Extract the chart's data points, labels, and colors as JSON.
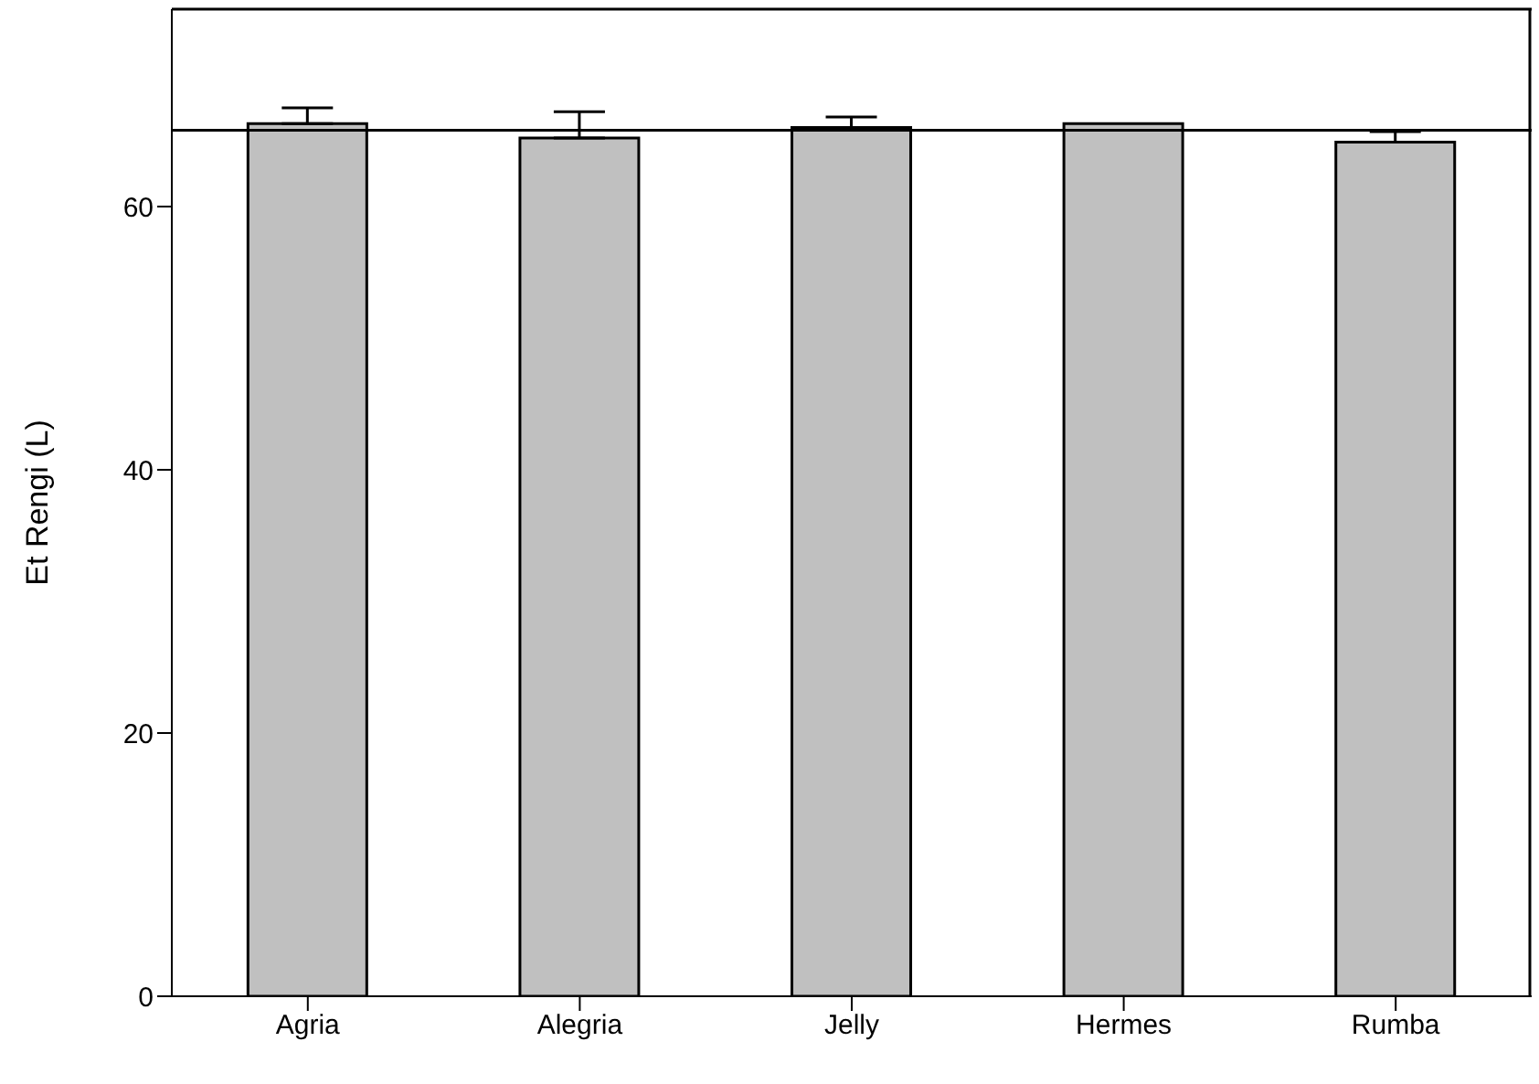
{
  "chart_data": {
    "type": "bar",
    "ylabel": "Et Rengi (L)",
    "categories": [
      "Agria",
      "Alegria",
      "Jelly",
      "Hermes",
      "Rumba"
    ],
    "values": [
      66.3,
      65.2,
      66.0,
      66.3,
      64.9
    ],
    "errors": [
      [
        66.3,
        67.5
      ],
      [
        65.2,
        67.2
      ],
      [
        66.0,
        66.8
      ],
      null,
      [
        64.9,
        65.7
      ]
    ],
    "color": "#c0c0c0",
    "ylim": [
      0,
      75
    ],
    "yticks": [
      0,
      20,
      40,
      60
    ],
    "grid": false,
    "ref_lines": [
      {
        "axis": "y",
        "value": 65.8,
        "color": "#000000"
      }
    ]
  }
}
